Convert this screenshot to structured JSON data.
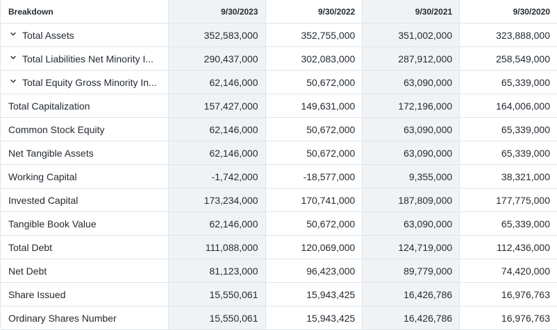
{
  "header": {
    "breakdown": "Breakdown",
    "columns": [
      "9/30/2023",
      "9/30/2022",
      "9/30/2021",
      "9/30/2020"
    ]
  },
  "rows": [
    {
      "label": "Total Assets",
      "expandable": true,
      "values": [
        "352,583,000",
        "352,755,000",
        "351,002,000",
        "323,888,000"
      ]
    },
    {
      "label": "Total Liabilities Net Minority I...",
      "expandable": true,
      "values": [
        "290,437,000",
        "302,083,000",
        "287,912,000",
        "258,549,000"
      ]
    },
    {
      "label": "Total Equity Gross Minority In...",
      "expandable": true,
      "values": [
        "62,146,000",
        "50,672,000",
        "63,090,000",
        "65,339,000"
      ]
    },
    {
      "label": "Total Capitalization",
      "expandable": false,
      "values": [
        "157,427,000",
        "149,631,000",
        "172,196,000",
        "164,006,000"
      ]
    },
    {
      "label": "Common Stock Equity",
      "expandable": false,
      "values": [
        "62,146,000",
        "50,672,000",
        "63,090,000",
        "65,339,000"
      ]
    },
    {
      "label": "Net Tangible Assets",
      "expandable": false,
      "values": [
        "62,146,000",
        "50,672,000",
        "63,090,000",
        "65,339,000"
      ]
    },
    {
      "label": "Working Capital",
      "expandable": false,
      "values": [
        "-1,742,000",
        "-18,577,000",
        "9,355,000",
        "38,321,000"
      ]
    },
    {
      "label": "Invested Capital",
      "expandable": false,
      "values": [
        "173,234,000",
        "170,741,000",
        "187,809,000",
        "177,775,000"
      ]
    },
    {
      "label": "Tangible Book Value",
      "expandable": false,
      "values": [
        "62,146,000",
        "50,672,000",
        "63,090,000",
        "65,339,000"
      ]
    },
    {
      "label": "Total Debt",
      "expandable": false,
      "values": [
        "111,088,000",
        "120,069,000",
        "124,719,000",
        "112,436,000"
      ]
    },
    {
      "label": "Net Debt",
      "expandable": false,
      "values": [
        "81,123,000",
        "96,423,000",
        "89,779,000",
        "74,420,000"
      ]
    },
    {
      "label": "Share Issued",
      "expandable": false,
      "values": [
        "15,550,061",
        "15,943,425",
        "16,426,786",
        "16,976,763"
      ]
    },
    {
      "label": "Ordinary Shares Number",
      "expandable": false,
      "values": [
        "15,550,061",
        "15,943,425",
        "16,426,786",
        "16,976,763"
      ]
    }
  ],
  "icons": {
    "expand": "chevron-down-icon"
  },
  "colors": {
    "shaded_column": "#f0f3f5",
    "border": "#e0e4e9",
    "text": "#232a31"
  }
}
